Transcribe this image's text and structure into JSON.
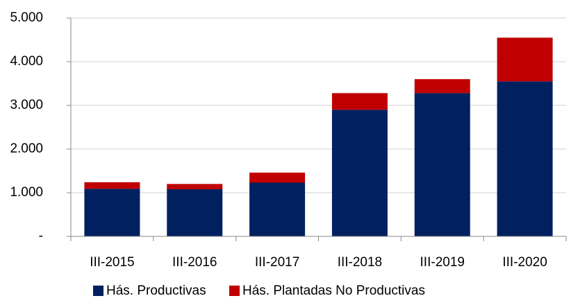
{
  "chart_data": {
    "type": "stacked_bar",
    "categories": [
      "III-2015",
      "III-2016",
      "III-2017",
      "III-2018",
      "III-2019",
      "III-2020"
    ],
    "series": [
      {
        "name": "Hás. Productivas",
        "color": "#002060",
        "values": [
          1090,
          1080,
          1230,
          2900,
          3280,
          3550
        ]
      },
      {
        "name": "Hás. Plantadas No Productivas",
        "color": "#c00000",
        "values": [
          150,
          120,
          230,
          380,
          320,
          1000
        ]
      }
    ],
    "ylim": [
      0,
      5000
    ],
    "yticks": [
      {
        "value": 0,
        "label": "-"
      },
      {
        "value": 1000,
        "label": "1.000"
      },
      {
        "value": 2000,
        "label": "2.000"
      },
      {
        "value": 3000,
        "label": "3.000"
      },
      {
        "value": 4000,
        "label": "4.000"
      },
      {
        "value": 5000,
        "label": "5.000"
      }
    ],
    "grid": true,
    "legend": "bottom"
  }
}
